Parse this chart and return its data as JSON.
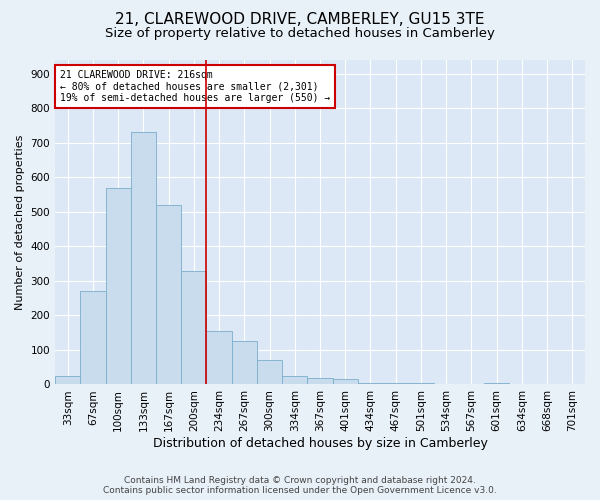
{
  "title": "21, CLAREWOOD DRIVE, CAMBERLEY, GU15 3TE",
  "subtitle": "Size of property relative to detached houses in Camberley",
  "xlabel": "Distribution of detached houses by size in Camberley",
  "ylabel": "Number of detached properties",
  "footer1": "Contains HM Land Registry data © Crown copyright and database right 2024.",
  "footer2": "Contains public sector information licensed under the Open Government Licence v3.0.",
  "categories": [
    "33sqm",
    "67sqm",
    "100sqm",
    "133sqm",
    "167sqm",
    "200sqm",
    "234sqm",
    "267sqm",
    "300sqm",
    "334sqm",
    "367sqm",
    "401sqm",
    "434sqm",
    "467sqm",
    "501sqm",
    "534sqm",
    "567sqm",
    "601sqm",
    "634sqm",
    "668sqm",
    "701sqm"
  ],
  "values": [
    25,
    270,
    570,
    730,
    520,
    330,
    155,
    125,
    70,
    25,
    20,
    15,
    5,
    5,
    4,
    2,
    0,
    4,
    0,
    0,
    0
  ],
  "bar_color": "#c8dcee",
  "bar_edge_color": "#7aaecb",
  "bar_width": 1.0,
  "vline_x": 5.5,
  "vline_color": "#cc0000",
  "annotation_text": "21 CLAREWOOD DRIVE: 216sqm\n← 80% of detached houses are smaller (2,301)\n19% of semi-detached houses are larger (550) →",
  "annotation_box_color": "#ffffff",
  "annotation_box_edge": "#cc0000",
  "ylim": [
    0,
    940
  ],
  "yticks": [
    0,
    100,
    200,
    300,
    400,
    500,
    600,
    700,
    800,
    900
  ],
  "background_color": "#e8f0f8",
  "axes_background": "#dce8f5",
  "grid_color": "#ffffff",
  "title_fontsize": 11,
  "subtitle_fontsize": 9.5,
  "xlabel_fontsize": 9,
  "ylabel_fontsize": 8,
  "tick_fontsize": 7.5,
  "footer_fontsize": 6.5
}
